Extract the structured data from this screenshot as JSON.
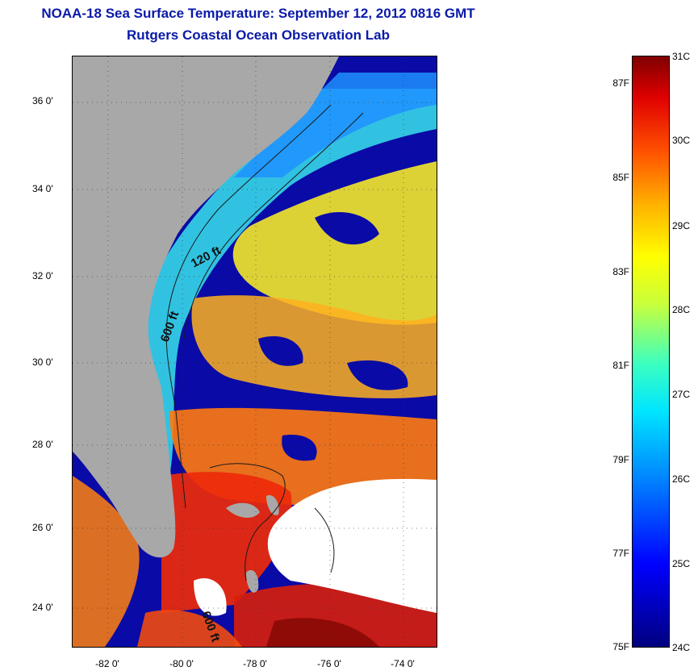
{
  "title_line1": "NOAA-18 Sea Surface Temperature:  September 12, 2012 0816 GMT",
  "title_line2": "Rutgers Coastal Ocean Observation Lab",
  "map": {
    "lat_labels": [
      "36 0'",
      "34 0'",
      "32 0'",
      "30 0'",
      "28 0'",
      "26 0'",
      "24 0'"
    ],
    "lon_labels": [
      "-82 0'",
      "-80 0'",
      "-78 0'",
      "-76 0'",
      "-74 0'"
    ],
    "contour_labels": [
      "120 ft",
      "600 ft",
      "600 ft"
    ],
    "colors": {
      "land": "#a8a8a8",
      "cloud_mask": "#0a0aa6",
      "no_data": "#ffffff",
      "contour": "#1a1a1a"
    }
  },
  "colorbar": {
    "celsius_labels": [
      "31C",
      "30C",
      "29C",
      "28C",
      "27C",
      "26C",
      "25C",
      "24C"
    ],
    "fahrenheit_labels": [
      "87F",
      "85F",
      "83F",
      "81F",
      "79F",
      "77F",
      "75F"
    ],
    "min_c": 24,
    "max_c": 31,
    "colormap": "jet"
  }
}
